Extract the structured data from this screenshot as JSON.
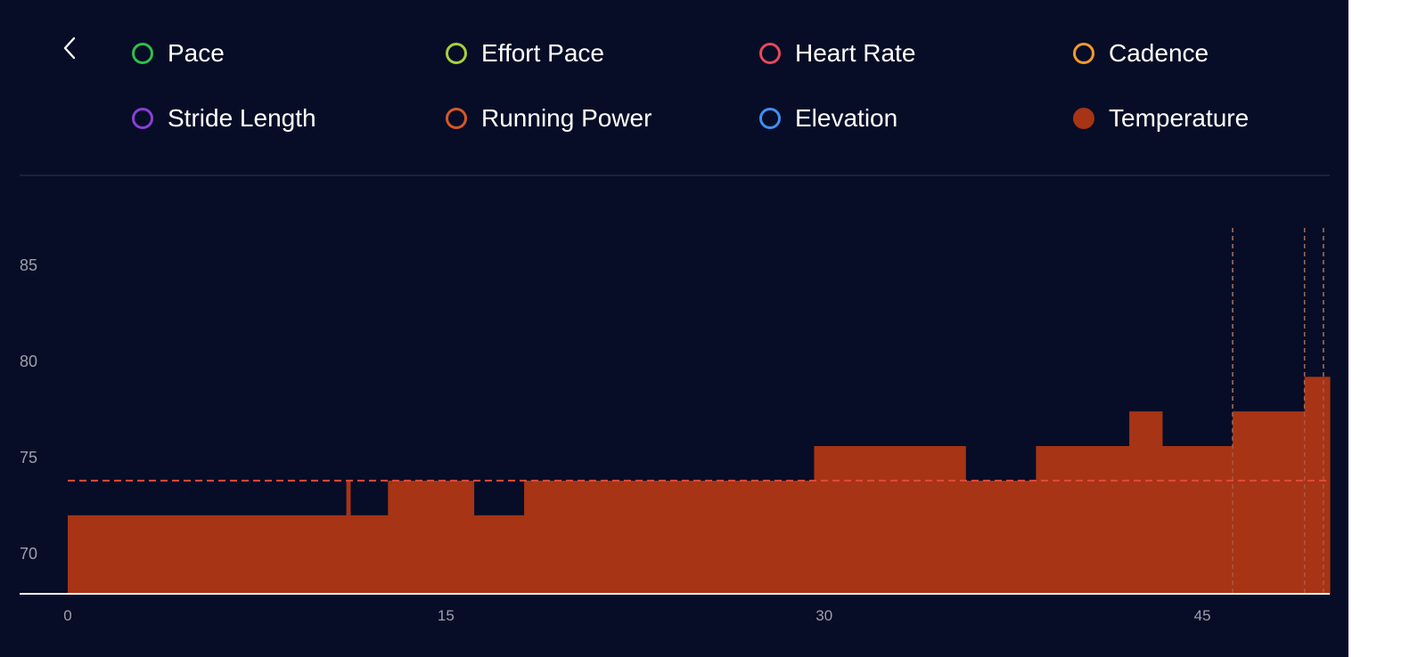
{
  "legend": {
    "items": [
      {
        "label": "Pace",
        "color": "#2fbf4a",
        "filled": false
      },
      {
        "label": "Effort Pace",
        "color": "#a6d13a",
        "filled": false
      },
      {
        "label": "Heart Rate",
        "color": "#e8485a",
        "filled": false
      },
      {
        "label": "Cadence",
        "color": "#f29a2e",
        "filled": false
      },
      {
        "label": "Stride Length",
        "color": "#8a3fd6",
        "filled": false
      },
      {
        "label": "Running Power",
        "color": "#d4582a",
        "filled": false
      },
      {
        "label": "Elevation",
        "color": "#3f8ff2",
        "filled": false
      },
      {
        "label": "Temperature",
        "color": "#a73415",
        "filled": true
      }
    ]
  },
  "icons": {
    "back": "chevron-left-icon"
  },
  "colors": {
    "background": "#070d26",
    "temperature_fill": "#a73415",
    "average_line": "#e24a3b",
    "marker_line": "#6b6f7a",
    "axis_line": "#ffffff"
  },
  "chart_data": {
    "type": "area",
    "series": [
      {
        "name": "Temperature",
        "step": true,
        "points": [
          {
            "x_start": 0,
            "x_end": 11.05,
            "y": 72
          },
          {
            "x_start": 11.05,
            "x_end": 11.2,
            "y": 73.8
          },
          {
            "x_start": 11.2,
            "x_end": 12.7,
            "y": 72
          },
          {
            "x_start": 12.7,
            "x_end": 16.1,
            "y": 73.8
          },
          {
            "x_start": 16.1,
            "x_end": 18.1,
            "y": 72
          },
          {
            "x_start": 18.1,
            "x_end": 29.6,
            "y": 73.8
          },
          {
            "x_start": 29.6,
            "x_end": 35.6,
            "y": 75.6
          },
          {
            "x_start": 35.6,
            "x_end": 38.4,
            "y": 73.8
          },
          {
            "x_start": 38.4,
            "x_end": 42.1,
            "y": 75.6
          },
          {
            "x_start": 42.1,
            "x_end": 43.4,
            "y": 77.4
          },
          {
            "x_start": 43.4,
            "x_end": 46.2,
            "y": 75.6
          },
          {
            "x_start": 46.2,
            "x_end": 49.05,
            "y": 77.4
          },
          {
            "x_start": 49.05,
            "x_end": 50.05,
            "y": 79.2
          }
        ]
      }
    ],
    "average_line": {
      "y": 73.8,
      "style": "dashed"
    },
    "markers": [
      46.2,
      49.05,
      49.8
    ],
    "x_ticks": [
      0,
      15,
      30,
      45
    ],
    "y_ticks": [
      70,
      75,
      80,
      85
    ],
    "xlim": [
      0,
      50.05
    ],
    "ylim": [
      68.1,
      87
    ],
    "title": "",
    "xlabel": "",
    "ylabel": "",
    "grid": false
  }
}
